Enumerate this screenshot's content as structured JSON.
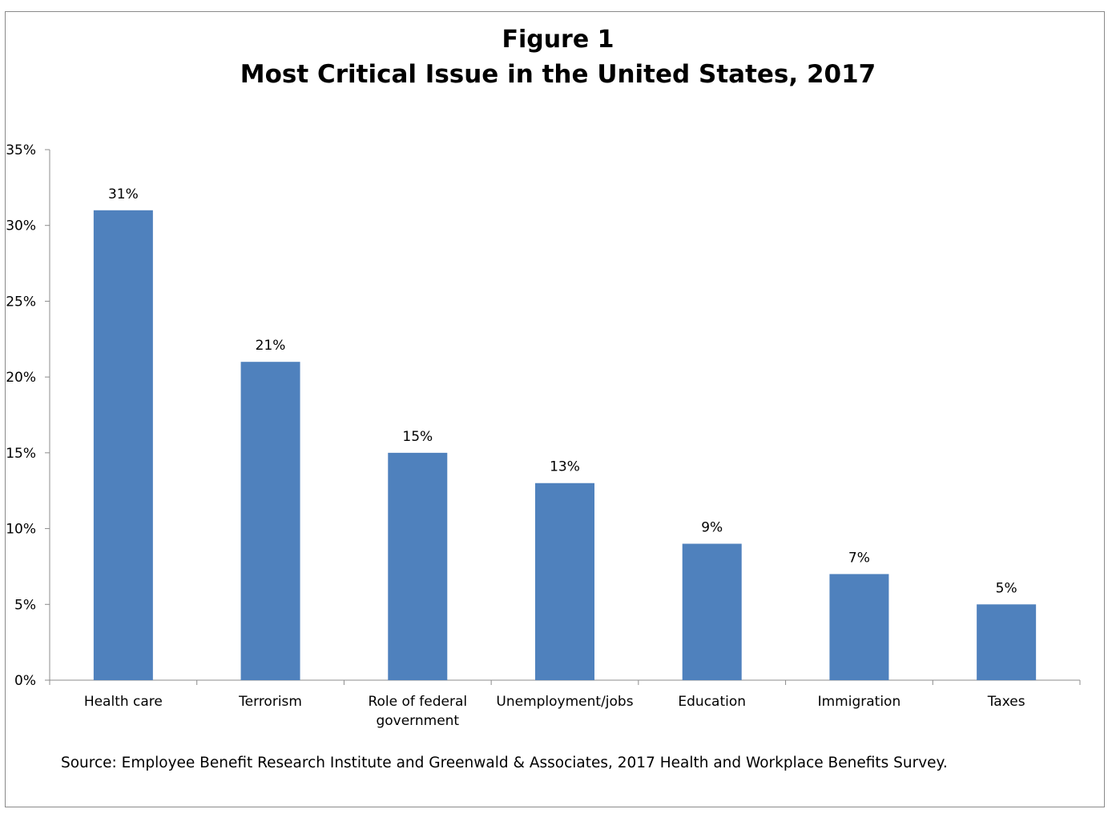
{
  "title_line1": "Figure 1",
  "title_line2": "Most Critical Issue in the United States, 2017",
  "source": "Source: Employee Benefit Research Institute and Greenwald & Associates, 2017 Health and Workplace Benefits Survey.",
  "colors": {
    "bar": "#4f81bd",
    "axis": "#8c8c8c",
    "frame": "#8a8a8a"
  },
  "chart_data": {
    "type": "bar",
    "title": "Most Critical Issue in the United States, 2017",
    "categories": [
      [
        "Health care"
      ],
      [
        "Terrorism"
      ],
      [
        "Role of federal",
        "government"
      ],
      [
        "Unemployment/jobs"
      ],
      [
        "Education"
      ],
      [
        "Immigration"
      ],
      [
        "Taxes"
      ]
    ],
    "values": [
      31,
      21,
      15,
      13,
      9,
      7,
      5
    ],
    "data_labels": [
      "31%",
      "21%",
      "15%",
      "13%",
      "9%",
      "7%",
      "5%"
    ],
    "yticks": [
      0,
      5,
      10,
      15,
      20,
      25,
      30,
      35
    ],
    "ytick_labels": [
      "0%",
      "5%",
      "10%",
      "15%",
      "20%",
      "25%",
      "30%",
      "35%"
    ],
    "ylim": [
      0,
      35
    ],
    "grid": false,
    "legend": "none"
  }
}
